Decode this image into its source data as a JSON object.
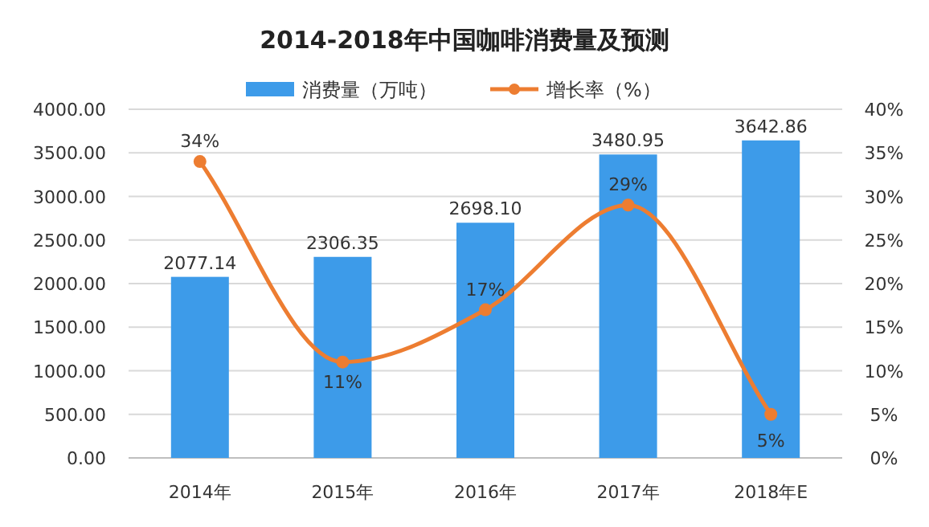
{
  "chart_data": {
    "type": "bar",
    "title": "2014-2018年中国咖啡消费量及预测",
    "categories": [
      "2014年",
      "2015年",
      "2016年",
      "2017年",
      "2018年E"
    ],
    "series": [
      {
        "name": "消费量（万吨）",
        "color": "#3d9be9",
        "values": [
          2077.14,
          2306.35,
          2698.1,
          3480.95,
          3642.86
        ],
        "value_labels": [
          "2077.14",
          "2306.35",
          "2698.10",
          "3480.95",
          "3642.86"
        ]
      },
      {
        "name": "增长率（%）",
        "type": "line",
        "axis": "y2",
        "color": "#ed7d31",
        "marker": "circle",
        "values": [
          34,
          11,
          17,
          29,
          5
        ],
        "value_labels": [
          "34%",
          "11%",
          "17%",
          "29%",
          "5%"
        ]
      }
    ],
    "ylim": [
      0,
      4000
    ],
    "yticks": [
      {
        "value": 0,
        "label": "0.00"
      },
      {
        "value": 500,
        "label": "500.00"
      },
      {
        "value": 1000,
        "label": "1000.00"
      },
      {
        "value": 1500,
        "label": "1500.00"
      },
      {
        "value": 2000,
        "label": "2000.00"
      },
      {
        "value": 2500,
        "label": "2500.00"
      },
      {
        "value": 3000,
        "label": "3000.00"
      },
      {
        "value": 3500,
        "label": "3500.00"
      },
      {
        "value": 4000,
        "label": "4000.00"
      }
    ],
    "y2lim": [
      0,
      40
    ],
    "y2ticks": [
      {
        "value": 0,
        "label": "0%"
      },
      {
        "value": 5,
        "label": "5%"
      },
      {
        "value": 10,
        "label": "10%"
      },
      {
        "value": 15,
        "label": "15%"
      },
      {
        "value": 20,
        "label": "20%"
      },
      {
        "value": 25,
        "label": "25%"
      },
      {
        "value": 30,
        "label": "30%"
      },
      {
        "value": 35,
        "label": "35%"
      },
      {
        "value": 40,
        "label": "40%"
      }
    ],
    "grid": "y",
    "legend": "top"
  }
}
